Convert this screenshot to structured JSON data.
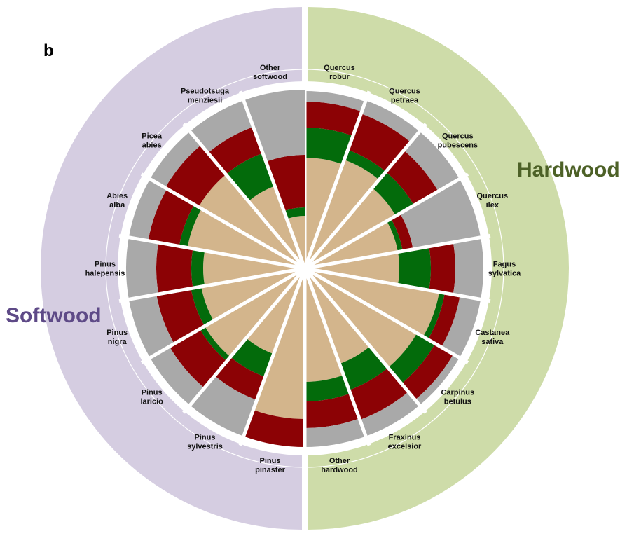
{
  "chart_data": {
    "type": "radial-stacked-bar",
    "panel_label": "b",
    "groups": [
      {
        "name": "Softwood",
        "color": "#d5cde1",
        "text_color": "#5e4a87"
      },
      {
        "name": "Hardwood",
        "color": "#cedca9",
        "text_color": "#4d6127"
      }
    ],
    "categories": [
      "Quercus robur",
      "Quercus petraea",
      "Quercus pubescens",
      "Quercus ilex",
      "Fagus sylvatica",
      "Castanea sativa",
      "Carpinus betulus",
      "Fraxinus excelsior",
      "Other hardwood",
      "Pinus pinaster",
      "Pinus sylvestris",
      "Pinus laricio",
      "Pinus nigra",
      "Pinus halepensis",
      "Abies alba",
      "Picea abies",
      "Pseudotsuga menziesii",
      "Other softwood"
    ],
    "rlim": [
      0,
      255
    ],
    "series": [
      {
        "color": "#d3b58c",
        "values": [
          158,
          165,
          150,
          135,
          135,
          195,
          185,
          145,
          162,
          215,
          130,
          165,
          150,
          145,
          170,
          175,
          125,
          75
        ]
      },
      {
        "color": "#036b0b",
        "values": [
          43,
          15,
          30,
          7,
          45,
          8,
          30,
          40,
          28,
          0,
          35,
          8,
          15,
          17,
          12,
          0,
          50,
          12
        ]
      },
      {
        "color": "#8c0205",
        "values": [
          37,
          55,
          40,
          15,
          35,
          22,
          30,
          45,
          38,
          40,
          35,
          50,
          50,
          50,
          45,
          55,
          40,
          75
        ]
      },
      {
        "color": "#a9a9a9",
        "values": [
          15,
          20,
          35,
          98,
          40,
          30,
          10,
          25,
          27,
          0,
          55,
          32,
          40,
          43,
          28,
          25,
          40,
          93
        ]
      }
    ]
  }
}
